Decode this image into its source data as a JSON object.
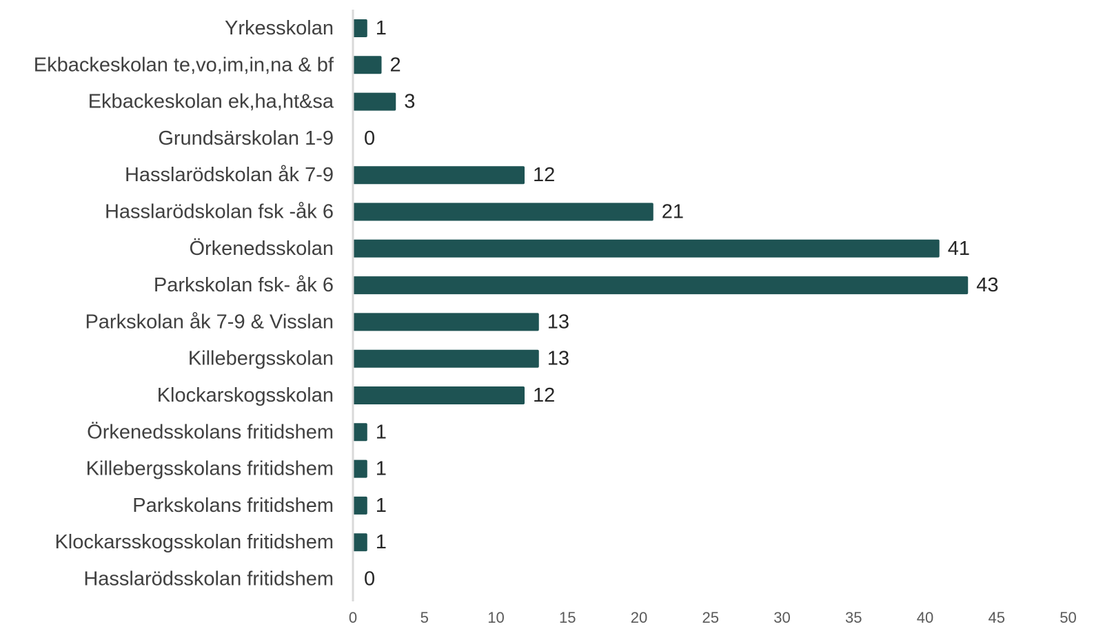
{
  "chart_data": {
    "type": "bar",
    "orientation": "horizontal",
    "categories": [
      "Yrkesskolan",
      "Ekbackeskolan te,vo,im,in,na & bf",
      "Ekbackeskolan ek,ha,ht&sa",
      "Grundsärskolan 1-9",
      "Hasslarödskolan åk 7-9",
      "Hasslarödskolan fsk -åk 6",
      "Örkenedsskolan",
      "Parkskolan fsk- åk 6",
      "Parkskolan åk 7-9 & Visslan",
      "Killebergsskolan",
      "Klockarskogsskolan",
      "Örkenedsskolans fritidshem",
      "Killebergsskolans fritidshem",
      "Parkskolans fritidshem",
      "Klockarsskogsskolan fritidshem",
      "Hasslarödsskolan fritidshem"
    ],
    "values": [
      1,
      2,
      3,
      0,
      12,
      21,
      41,
      43,
      13,
      13,
      12,
      1,
      1,
      1,
      1,
      0
    ],
    "xlim": [
      0,
      50
    ],
    "xticks": [
      "0",
      "5",
      "10",
      "15",
      "20",
      "25",
      "30",
      "35",
      "40",
      "45",
      "50"
    ],
    "data_labels": true,
    "grid": false,
    "legend": "none",
    "bar_color": "#1e5353",
    "axis_color": "#d9d9d9"
  }
}
